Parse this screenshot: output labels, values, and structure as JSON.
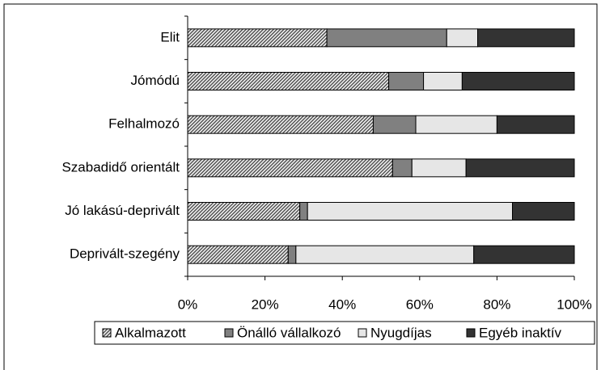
{
  "chart_data": {
    "type": "stacked_barh",
    "categories": [
      "Elit",
      "Jómódú",
      "Felhalmozó",
      "Szabadidő orientált",
      "Jó lakású-deprivált",
      "Deprivált-szegény"
    ],
    "series": [
      {
        "name": "Alkalmazott",
        "color": "#b8b8b8",
        "values": [
          36,
          52,
          48,
          53,
          29,
          26
        ]
      },
      {
        "name": "Önálló vállalkozó",
        "color": "#808080",
        "values": [
          31,
          9,
          11,
          5,
          2,
          2
        ]
      },
      {
        "name": "Nyugdíjas",
        "color": "#e6e6e6",
        "values": [
          8,
          10,
          21,
          14,
          53,
          46
        ]
      },
      {
        "name": "Egyéb inaktív",
        "color": "#333333",
        "values": [
          25,
          29,
          20,
          28,
          16,
          26
        ]
      }
    ],
    "xlim": [
      0,
      100
    ],
    "xticks": [
      {
        "value": 0,
        "label": "0%"
      },
      {
        "value": 20,
        "label": "20%"
      },
      {
        "value": 40,
        "label": "40%"
      },
      {
        "value": 60,
        "label": "60%"
      },
      {
        "value": 80,
        "label": "80%"
      },
      {
        "value": 100,
        "label": "100%"
      }
    ],
    "legend": "bottom"
  }
}
